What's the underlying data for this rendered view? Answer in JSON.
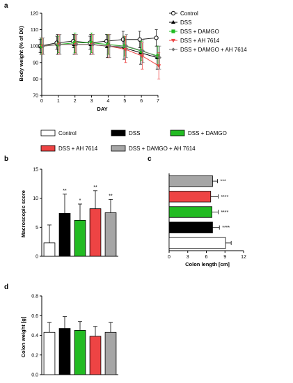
{
  "panel_labels": {
    "a": "a",
    "b": "b",
    "c": "c",
    "d": "d"
  },
  "colors": {
    "Control": "#ffffff",
    "DSS": "#000000",
    "DSS + DAMGO": "#22bb22",
    "DSS + AH 7614": "#ee4444",
    "DSS + DAMGO + AH 7614": "#a6a6a6"
  },
  "group_legend": [
    "Control",
    "DSS",
    "DSS + DAMGO",
    "DSS + AH 7614",
    "DSS + DAMGO + AH 7614"
  ],
  "chart_data": [
    {
      "panel": "a",
      "type": "line",
      "xlabel": "DAY",
      "ylabel": "Body weight (% of D0)",
      "x": [
        0,
        1,
        2,
        3,
        4,
        5,
        6,
        7
      ],
      "xlim": [
        0,
        7
      ],
      "ylim": [
        70,
        120
      ],
      "yticks": [
        70,
        80,
        90,
        100,
        110,
        120
      ],
      "series": [
        {
          "name": "Control",
          "marker": "circle",
          "color": "#222222",
          "values": [
            100,
            102,
            103,
            102,
            103,
            104,
            104,
            105
          ],
          "errors": [
            4,
            4,
            4,
            4,
            4,
            5,
            5,
            5
          ]
        },
        {
          "name": "DSS",
          "marker": "triangle",
          "color": "#000000",
          "values": [
            100,
            101,
            101,
            101,
            100,
            99,
            96,
            93
          ],
          "errors": [
            5,
            6,
            6,
            6,
            7,
            7,
            7,
            7
          ]
        },
        {
          "name": "DSS + DAMGO",
          "marker": "square",
          "color": "#22bb22",
          "values": [
            100,
            101,
            102,
            102,
            101,
            100,
            97,
            94
          ],
          "errors": [
            5,
            5,
            6,
            6,
            6,
            6,
            6,
            6
          ]
        },
        {
          "name": "DSS + AH 7614",
          "marker": "triangle-down",
          "color": "#ee4444",
          "values": [
            100,
            101,
            101,
            101,
            100,
            98,
            94,
            88
          ],
          "errors": [
            5,
            6,
            6,
            6,
            7,
            8,
            8,
            8
          ]
        },
        {
          "name": "DSS + DAMGO + AH 7614",
          "marker": "diamond",
          "color": "#777777",
          "values": [
            100,
            101,
            101,
            101,
            100,
            100,
            97,
            93
          ],
          "errors": [
            5,
            6,
            6,
            6,
            7,
            7,
            7,
            7
          ]
        }
      ]
    },
    {
      "panel": "b",
      "type": "bar",
      "ylabel": "Macroscopic score",
      "ylim": [
        0,
        15
      ],
      "yticks": [
        0,
        5,
        10,
        15
      ],
      "categories": [
        "Control",
        "DSS",
        "DSS + DAMGO",
        "DSS + AH 7614",
        "DSS + DAMGO + AH 7614"
      ],
      "values": [
        2.3,
        7.4,
        6.2,
        8.2,
        7.5
      ],
      "errors": [
        3.1,
        3.3,
        2.8,
        3.1,
        2.3
      ],
      "significance": [
        "",
        "**",
        "*",
        "**",
        "**"
      ]
    },
    {
      "panel": "c",
      "type": "bar",
      "orientation": "horizontal",
      "xlabel": "Colon length [cm]",
      "xlim": [
        0,
        12
      ],
      "xticks": [
        0,
        3,
        6,
        9,
        12
      ],
      "categories": [
        "DSS + DAMGO + AH 7614",
        "DSS + AH 7614",
        "DSS + DAMGO",
        "DSS",
        "Control"
      ],
      "values": [
        7.0,
        6.7,
        6.9,
        7.0,
        9.1
      ],
      "errors": [
        0.8,
        1.2,
        1.0,
        1.1,
        0.9
      ],
      "significance": [
        "***",
        "****",
        "****",
        "****",
        ""
      ]
    },
    {
      "panel": "d",
      "type": "bar",
      "ylabel": "Colon weight [g]",
      "ylim": [
        0,
        0.8
      ],
      "yticks": [
        0.0,
        0.2,
        0.4,
        0.6,
        0.8
      ],
      "categories": [
        "Control",
        "DSS",
        "DSS + DAMGO",
        "DSS + AH 7614",
        "DSS + DAMGO + AH 7614"
      ],
      "values": [
        0.43,
        0.47,
        0.45,
        0.39,
        0.43
      ],
      "errors": [
        0.1,
        0.12,
        0.09,
        0.1,
        0.1
      ]
    }
  ]
}
